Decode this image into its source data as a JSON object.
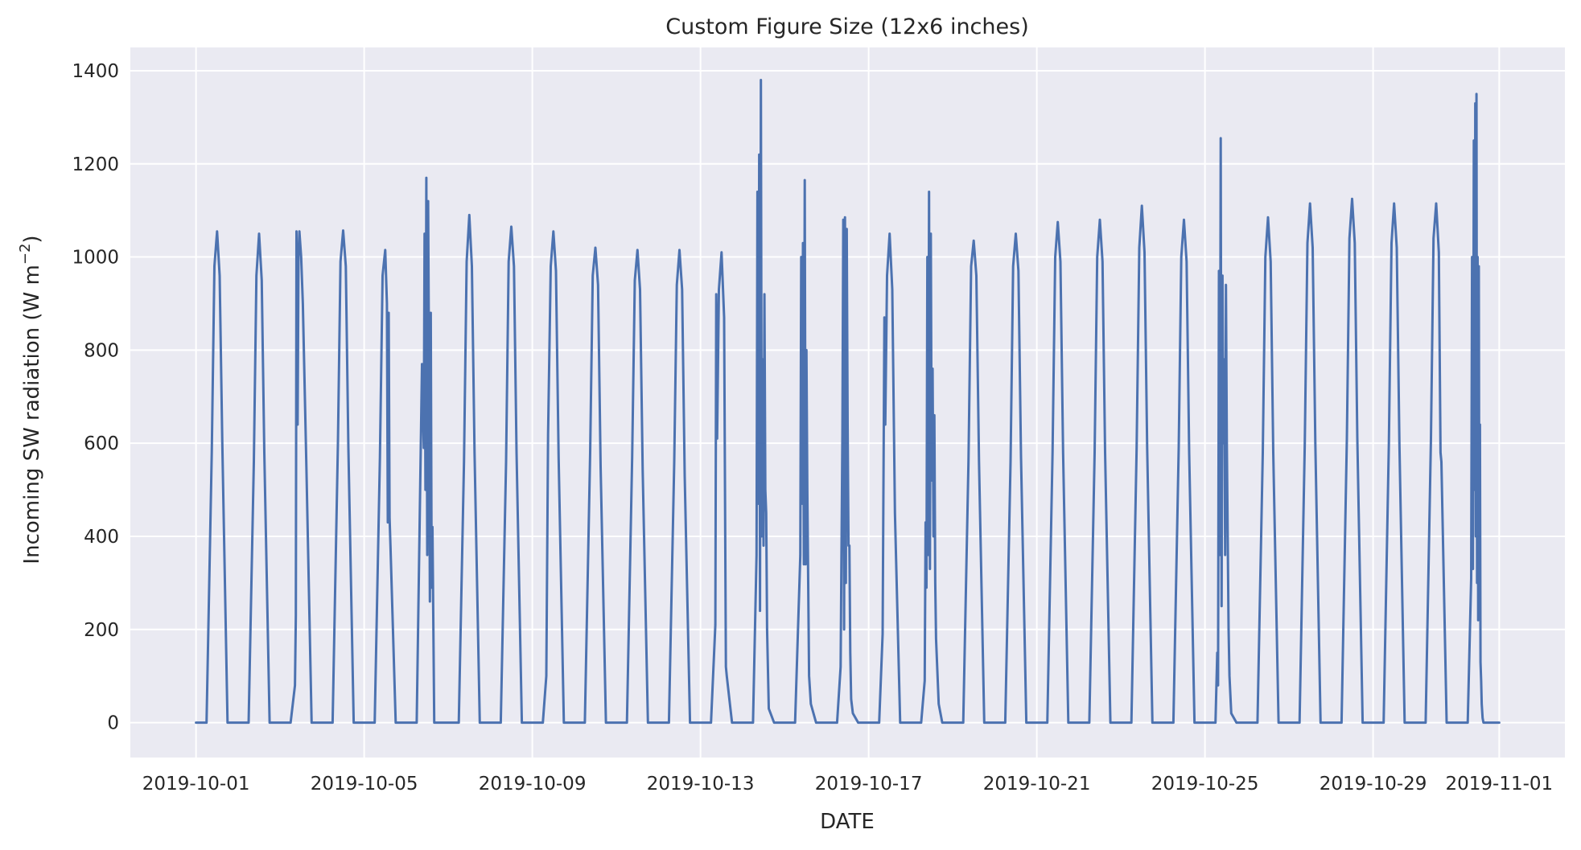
{
  "chart_data": {
    "type": "line",
    "title": "Custom Figure Size (12x6 inches)",
    "xlabel": "DATE",
    "ylabel": "Incoming SW radiation (W m",
    "ylabel_sup": "−2",
    "ylabel_close": ")",
    "xlim": [
      "2019-09-29T10:30",
      "2019-11-02T13:30"
    ],
    "ylim": [
      -75,
      1450
    ],
    "yticks": [
      0,
      200,
      400,
      600,
      800,
      1000,
      1200,
      1400
    ],
    "yticklabels": [
      "0",
      "200",
      "400",
      "600",
      "800",
      "1000",
      "1200",
      "1400"
    ],
    "xticks": [
      "2019-10-01",
      "2019-10-05",
      "2019-10-09",
      "2019-10-13",
      "2019-10-17",
      "2019-10-21",
      "2019-10-25",
      "2019-10-29",
      "2019-11-01"
    ],
    "xticklabels": [
      "2019-10-01",
      "2019-10-05",
      "2019-10-09",
      "2019-10-13",
      "2019-10-17",
      "2019-10-21",
      "2019-10-25",
      "2019-10-29",
      "2019-11-01"
    ],
    "grid": true,
    "colors": {
      "background": "#eaeaf2",
      "grid": "#ffffff",
      "line": "#4c72b0",
      "text": "#262626"
    },
    "series": [
      {
        "x": [
          "2019-10-01T00:00",
          "2019-10-01T06:00",
          "2019-10-01T09:00",
          "2019-10-01T10:30",
          "2019-10-01T12:00",
          "2019-10-01T13:30",
          "2019-10-01T15:00",
          "2019-10-01T18:00",
          "2019-10-02T06:00",
          "2019-10-02T09:00",
          "2019-10-02T10:30",
          "2019-10-02T12:00",
          "2019-10-02T13:30",
          "2019-10-02T15:00",
          "2019-10-02T18:00",
          "2019-10-03T06:00",
          "2019-10-03T08:30",
          "2019-10-03T09:00",
          "2019-10-03T09:20",
          "2019-10-03T10:00",
          "2019-10-03T10:30",
          "2019-10-03T11:00",
          "2019-10-03T12:00",
          "2019-10-03T13:00",
          "2019-10-03T15:00",
          "2019-10-03T18:00",
          "2019-10-04T06:00",
          "2019-10-04T09:00",
          "2019-10-04T10:30",
          "2019-10-04T12:00",
          "2019-10-04T13:30",
          "2019-10-04T15:00",
          "2019-10-04T18:00",
          "2019-10-05T06:00",
          "2019-10-05T09:00",
          "2019-10-05T10:30",
          "2019-10-05T12:00",
          "2019-10-05T13:00",
          "2019-10-05T13:30",
          "2019-10-05T14:00",
          "2019-10-05T14:30",
          "2019-10-05T15:00",
          "2019-10-05T18:00",
          "2019-10-06T06:00",
          "2019-10-06T09:00",
          "2019-10-06T10:00",
          "2019-10-06T10:30",
          "2019-10-06T11:00",
          "2019-10-06T11:30",
          "2019-10-06T12:00",
          "2019-10-06T12:30",
          "2019-10-06T13:00",
          "2019-10-06T13:30",
          "2019-10-06T14:00",
          "2019-10-06T14:30",
          "2019-10-06T15:00",
          "2019-10-06T16:00",
          "2019-10-06T18:00",
          "2019-10-07T06:00",
          "2019-10-07T09:00",
          "2019-10-07T10:30",
          "2019-10-07T12:00",
          "2019-10-07T13:30",
          "2019-10-07T15:00",
          "2019-10-07T18:00",
          "2019-10-08T06:00",
          "2019-10-08T09:00",
          "2019-10-08T10:30",
          "2019-10-08T12:00",
          "2019-10-08T13:30",
          "2019-10-08T15:00",
          "2019-10-08T18:00",
          "2019-10-09T06:00",
          "2019-10-09T08:00",
          "2019-10-09T09:00",
          "2019-10-09T10:30",
          "2019-10-09T12:00",
          "2019-10-09T13:30",
          "2019-10-09T15:00",
          "2019-10-09T18:00",
          "2019-10-10T06:00",
          "2019-10-10T09:00",
          "2019-10-10T10:30",
          "2019-10-10T12:00",
          "2019-10-10T13:30",
          "2019-10-10T15:00",
          "2019-10-10T18:00",
          "2019-10-11T06:00",
          "2019-10-11T09:00",
          "2019-10-11T10:30",
          "2019-10-11T12:00",
          "2019-10-11T13:30",
          "2019-10-11T15:00",
          "2019-10-11T18:00",
          "2019-10-12T06:00",
          "2019-10-12T09:00",
          "2019-10-12T10:30",
          "2019-10-12T12:00",
          "2019-10-12T13:30",
          "2019-10-12T15:00",
          "2019-10-12T18:00",
          "2019-10-13T06:00",
          "2019-10-13T08:30",
          "2019-10-13T09:00",
          "2019-10-13T09:30",
          "2019-10-13T10:30",
          "2019-10-13T12:00",
          "2019-10-13T13:30",
          "2019-10-13T14:30",
          "2019-10-13T15:00",
          "2019-10-13T18:00",
          "2019-10-14T06:00",
          "2019-10-14T08:00",
          "2019-10-14T08:30",
          "2019-10-14T09:00",
          "2019-10-14T09:30",
          "2019-10-14T10:00",
          "2019-10-14T10:30",
          "2019-10-14T11:00",
          "2019-10-14T11:30",
          "2019-10-14T12:00",
          "2019-10-14T12:30",
          "2019-10-14T13:00",
          "2019-10-14T13:30",
          "2019-10-14T14:00",
          "2019-10-14T15:00",
          "2019-10-14T18:00",
          "2019-10-15T06:00",
          "2019-10-15T09:00",
          "2019-10-15T09:30",
          "2019-10-15T10:00",
          "2019-10-15T10:30",
          "2019-10-15T11:00",
          "2019-10-15T11:30",
          "2019-10-15T12:00",
          "2019-10-15T12:30",
          "2019-10-15T13:00",
          "2019-10-15T13:30",
          "2019-10-15T14:00",
          "2019-10-15T15:00",
          "2019-10-15T18:00",
          "2019-10-16T06:00",
          "2019-10-16T08:00",
          "2019-10-16T09:00",
          "2019-10-16T09:30",
          "2019-10-16T10:00",
          "2019-10-16T10:30",
          "2019-10-16T11:00",
          "2019-10-16T11:30",
          "2019-10-16T12:00",
          "2019-10-16T12:30",
          "2019-10-16T13:00",
          "2019-10-16T13:30",
          "2019-10-16T14:00",
          "2019-10-16T15:00",
          "2019-10-16T18:00",
          "2019-10-17T06:00",
          "2019-10-17T08:00",
          "2019-10-17T09:00",
          "2019-10-17T09:30",
          "2019-10-17T10:30",
          "2019-10-17T12:00",
          "2019-10-17T13:30",
          "2019-10-17T15:00",
          "2019-10-17T18:00",
          "2019-10-18T06:00",
          "2019-10-18T08:00",
          "2019-10-18T08:30",
          "2019-10-18T09:00",
          "2019-10-18T09:30",
          "2019-10-18T10:00",
          "2019-10-18T10:30",
          "2019-10-18T11:00",
          "2019-10-18T11:30",
          "2019-10-18T12:00",
          "2019-10-18T12:30",
          "2019-10-18T13:00",
          "2019-10-18T13:30",
          "2019-10-18T14:00",
          "2019-10-18T14:30",
          "2019-10-18T16:00",
          "2019-10-18T18:00",
          "2019-10-19T06:00",
          "2019-10-19T09:00",
          "2019-10-19T10:30",
          "2019-10-19T12:00",
          "2019-10-19T13:30",
          "2019-10-19T15:00",
          "2019-10-19T18:00",
          "2019-10-20T06:00",
          "2019-10-20T09:00",
          "2019-10-20T10:30",
          "2019-10-20T12:00",
          "2019-10-20T13:30",
          "2019-10-20T15:00",
          "2019-10-20T18:00",
          "2019-10-21T06:00",
          "2019-10-21T09:00",
          "2019-10-21T10:30",
          "2019-10-21T12:00",
          "2019-10-21T13:30",
          "2019-10-21T15:00",
          "2019-10-21T18:00",
          "2019-10-22T06:00",
          "2019-10-22T09:00",
          "2019-10-22T10:30",
          "2019-10-22T12:00",
          "2019-10-22T13:30",
          "2019-10-22T15:00",
          "2019-10-22T18:00",
          "2019-10-23T06:00",
          "2019-10-23T09:00",
          "2019-10-23T10:30",
          "2019-10-23T12:00",
          "2019-10-23T13:30",
          "2019-10-23T15:00",
          "2019-10-23T18:00",
          "2019-10-24T06:00",
          "2019-10-24T09:00",
          "2019-10-24T10:30",
          "2019-10-24T12:00",
          "2019-10-24T13:30",
          "2019-10-24T15:00",
          "2019-10-24T18:00",
          "2019-10-25T06:00",
          "2019-10-25T07:00",
          "2019-10-25T07:30",
          "2019-10-25T08:00",
          "2019-10-25T08:30",
          "2019-10-25T09:00",
          "2019-10-25T09:30",
          "2019-10-25T10:00",
          "2019-10-25T10:30",
          "2019-10-25T11:00",
          "2019-10-25T11:30",
          "2019-10-25T12:00",
          "2019-10-25T12:30",
          "2019-10-25T13:00",
          "2019-10-25T13:30",
          "2019-10-25T14:00",
          "2019-10-25T15:00",
          "2019-10-25T18:00",
          "2019-10-26T06:00",
          "2019-10-26T09:00",
          "2019-10-26T10:30",
          "2019-10-26T12:00",
          "2019-10-26T13:30",
          "2019-10-26T15:00",
          "2019-10-26T18:00",
          "2019-10-27T06:00",
          "2019-10-27T09:00",
          "2019-10-27T10:30",
          "2019-10-27T12:00",
          "2019-10-27T13:30",
          "2019-10-27T15:00",
          "2019-10-27T18:00",
          "2019-10-28T06:00",
          "2019-10-28T09:00",
          "2019-10-28T10:30",
          "2019-10-28T12:00",
          "2019-10-28T13:30",
          "2019-10-28T15:00",
          "2019-10-28T18:00",
          "2019-10-29T06:00",
          "2019-10-29T09:00",
          "2019-10-29T10:30",
          "2019-10-29T12:00",
          "2019-10-29T13:30",
          "2019-10-29T15:00",
          "2019-10-29T18:00",
          "2019-10-30T06:00",
          "2019-10-30T09:00",
          "2019-10-30T10:30",
          "2019-10-30T12:00",
          "2019-10-30T13:30",
          "2019-10-30T14:30",
          "2019-10-30T15:00",
          "2019-10-30T18:00",
          "2019-10-31T06:00",
          "2019-10-31T08:00",
          "2019-10-31T08:30",
          "2019-10-31T09:00",
          "2019-10-31T09:30",
          "2019-10-31T10:00",
          "2019-10-31T10:20",
          "2019-10-31T10:40",
          "2019-10-31T11:00",
          "2019-10-31T11:20",
          "2019-10-31T11:40",
          "2019-10-31T12:00",
          "2019-10-31T12:20",
          "2019-10-31T12:40",
          "2019-10-31T13:00",
          "2019-10-31T13:20",
          "2019-10-31T13:40",
          "2019-10-31T14:00",
          "2019-10-31T14:30",
          "2019-10-31T15:00",
          "2019-10-31T15:30",
          "2019-10-31T18:00",
          "2019-11-01T00:00"
        ],
        "y": [
          0,
          0,
          580,
          980,
          1055,
          960,
          600,
          0,
          0,
          560,
          960,
          1050,
          950,
          580,
          0,
          0,
          80,
          230,
          1055,
          640,
          1000,
          1055,
          1000,
          900,
          550,
          0,
          0,
          600,
          990,
          1057,
          980,
          590,
          0,
          0,
          570,
          960,
          1015,
          900,
          430,
          880,
          440,
          380,
          0,
          0,
          770,
          590,
          1050,
          500,
          1170,
          360,
          1120,
          780,
          260,
          880,
          290,
          420,
          0,
          0,
          0,
          560,
          990,
          1090,
          980,
          580,
          0,
          0,
          560,
          990,
          1065,
          980,
          580,
          0,
          0,
          100,
          620,
          980,
          1055,
          970,
          570,
          0,
          0,
          580,
          960,
          1020,
          940,
          550,
          0,
          0,
          570,
          950,
          1015,
          930,
          540,
          0,
          0,
          560,
          940,
          1015,
          930,
          530,
          0,
          0,
          210,
          920,
          610,
          930,
          1010,
          870,
          120,
          100,
          0,
          0,
          360,
          1140,
          470,
          1220,
          240,
          1380,
          400,
          780,
          380,
          920,
          500,
          450,
          200,
          30,
          0,
          0,
          360,
          1000,
          470,
          1030,
          340,
          1165,
          340,
          800,
          500,
          300,
          100,
          40,
          0,
          0,
          120,
          620,
          1080,
          200,
          1085,
          300,
          1060,
          640,
          380,
          380,
          150,
          50,
          20,
          0,
          0,
          190,
          870,
          640,
          960,
          1050,
          930,
          450,
          0,
          0,
          90,
          430,
          290,
          1000,
          360,
          1140,
          330,
          1050,
          520,
          760,
          400,
          660,
          300,
          180,
          40,
          0,
          0,
          560,
          980,
          1035,
          960,
          560,
          0,
          0,
          560,
          980,
          1050,
          970,
          570,
          0,
          0,
          580,
          1000,
          1075,
          990,
          580,
          0,
          0,
          580,
          1000,
          1080,
          990,
          580,
          0,
          0,
          590,
          1020,
          1110,
          1010,
          590,
          0,
          0,
          590,
          1000,
          1080,
          990,
          580,
          0,
          0,
          150,
          80,
          970,
          360,
          1255,
          250,
          960,
          600,
          780,
          360,
          940,
          600,
          400,
          200,
          100,
          20,
          0,
          0,
          580,
          1000,
          1085,
          990,
          580,
          0,
          0,
          600,
          1030,
          1115,
          1020,
          600,
          0,
          0,
          610,
          1040,
          1125,
          1030,
          610,
          0,
          0,
          600,
          1030,
          1115,
          1020,
          600,
          0,
          0,
          610,
          1040,
          1115,
          1010,
          580,
          560,
          0,
          0,
          310,
          1000,
          330,
          1250,
          500,
          1330,
          400,
          1350,
          300,
          1000,
          220,
          980,
          250,
          640,
          130,
          90,
          40,
          10,
          0,
          0,
          0,
          0
        ]
      }
    ]
  }
}
